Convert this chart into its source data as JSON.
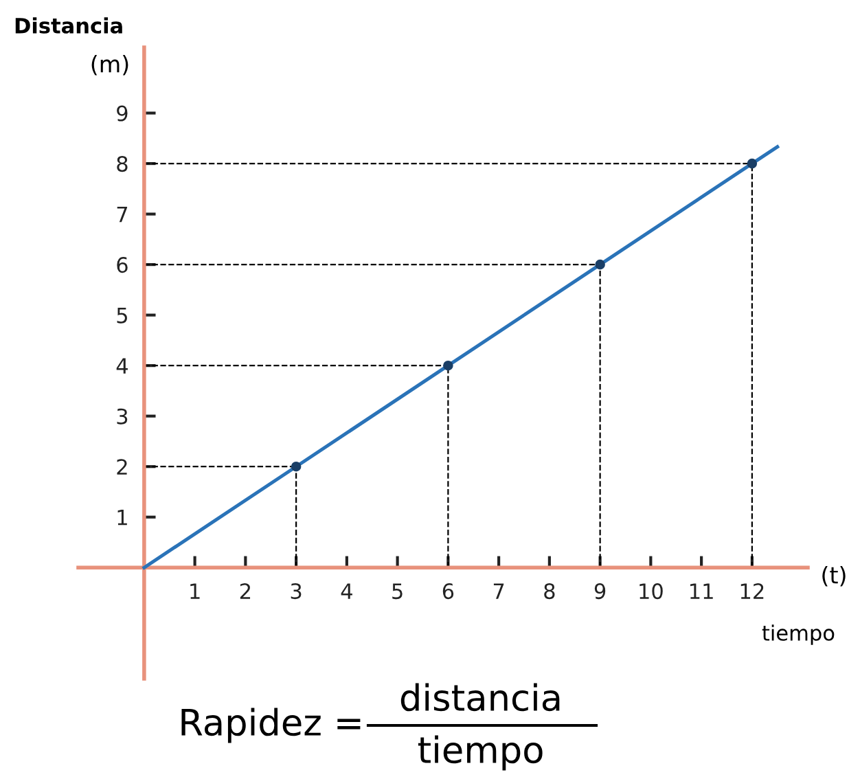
{
  "chart_data": {
    "type": "line",
    "xlabel": "tiempo",
    "ylabel": "Distancia",
    "annotations": [
      "(m)",
      "(t)",
      "Rapidez =",
      "distancia",
      "tiempo"
    ],
    "series": [
      {
        "color": "#2a73b8",
        "x": [
          0,
          3,
          6,
          9,
          12,
          12.5
        ],
        "values": [
          0,
          2,
          4,
          6,
          8,
          8.33
        ]
      },
      {
        "type": "scatter",
        "marker": "circle",
        "color": "#1b3f66",
        "x": [
          3,
          6,
          9,
          12
        ],
        "values": [
          2,
          4,
          6,
          8
        ]
      }
    ],
    "ref_lines": [
      {
        "axis": "x",
        "value": 3,
        "line_style": "dashed",
        "color": "#000000"
      },
      {
        "axis": "x",
        "value": 6,
        "line_style": "dashed",
        "color": "#000000"
      },
      {
        "axis": "x",
        "value": 9,
        "line_style": "dashed",
        "color": "#000000"
      },
      {
        "axis": "x",
        "value": 12,
        "line_style": "dashed",
        "color": "#000000"
      },
      {
        "axis": "y",
        "value": 2,
        "line_style": "dashed",
        "color": "#000000"
      },
      {
        "axis": "y",
        "value": 4,
        "line_style": "dashed",
        "color": "#000000"
      },
      {
        "axis": "y",
        "value": 6,
        "line_style": "dashed",
        "color": "#000000"
      },
      {
        "axis": "y",
        "value": 8,
        "line_style": "dashed",
        "color": "#000000"
      }
    ],
    "xlim": [
      -1.3,
      13.1
    ],
    "ylim": [
      -2.2,
      10.3
    ],
    "xticks": [
      1,
      2,
      3,
      4,
      5,
      6,
      7,
      8,
      9,
      10,
      11,
      12
    ],
    "yticks": [
      1,
      2,
      3,
      4,
      5,
      6,
      7,
      8,
      9
    ],
    "grid": false,
    "marker": "none",
    "line_style": "solid"
  }
}
